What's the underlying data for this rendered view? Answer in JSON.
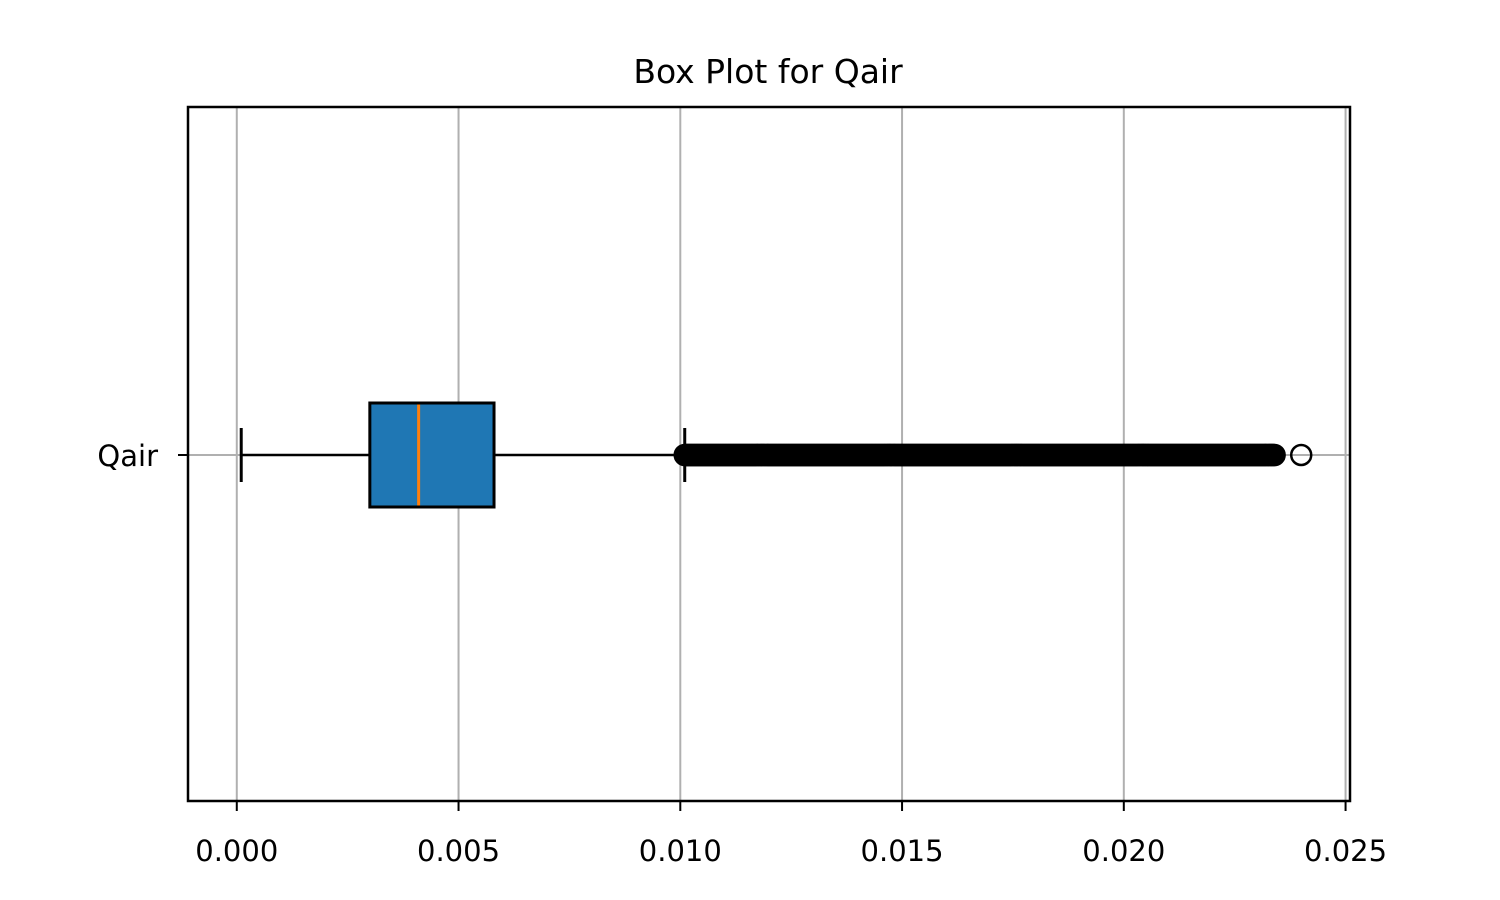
{
  "chart_data": {
    "type": "boxplot",
    "orientation": "horizontal",
    "title": "Box Plot for Qair",
    "xlabel": "",
    "ylabel": "",
    "xlim": [
      -0.0011,
      0.0251
    ],
    "xticks": [
      0.0,
      0.005,
      0.01,
      0.015,
      0.02,
      0.025
    ],
    "xtick_labels": [
      "0.000",
      "0.005",
      "0.010",
      "0.015",
      "0.020",
      "0.025"
    ],
    "grid": true,
    "categories": [
      "Qair"
    ],
    "boxes": [
      {
        "label": "Qair",
        "whisker_low": 0.0001,
        "q1": 0.003,
        "median": 0.0041,
        "q3": 0.0058,
        "whisker_high": 0.0101,
        "outlier_range": [
          0.0101,
          0.0234
        ],
        "outliers_extra": [
          0.024
        ],
        "fill_color": "#1f77b4",
        "median_color": "#ff7f0e"
      }
    ]
  }
}
